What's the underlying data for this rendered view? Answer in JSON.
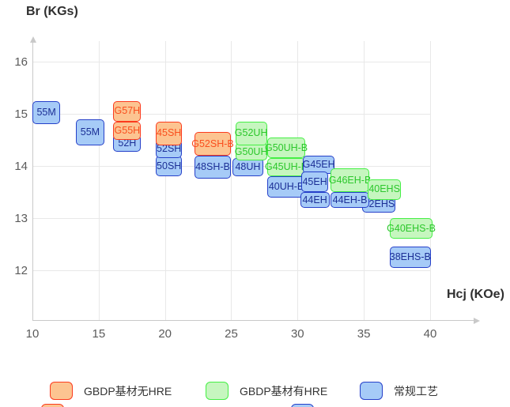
{
  "chart_data": {
    "type": "scatter",
    "title": "",
    "xlabel": "Hcj (KOe)",
    "ylabel": "Br (KGs)",
    "x_ticks": [
      10,
      15,
      20,
      25,
      30,
      35,
      40
    ],
    "y_ticks": [
      16,
      15,
      14,
      13,
      12
    ],
    "xlim": [
      10,
      43.4
    ],
    "ylim": [
      11.1,
      16.4
    ],
    "grid": true,
    "legend_position": "bottom",
    "colors": {
      "gridline": "#e8e8e8",
      "axis": "#c9c9c9",
      "tick_text": "#5b5b5b",
      "title_text": "#2f2f2f",
      "legend_text": "#333333"
    },
    "legend": [
      {
        "key": "gbdp_no_hre",
        "label": "GBDP基材无HRE",
        "fill": "#fcc491",
        "border": "#fb3b1e",
        "text_color": "#fa4f1e"
      },
      {
        "key": "gbdp_with_hre",
        "label": "GBDP基材有HRE",
        "fill": "#c6f6bf",
        "border": "#45ef45",
        "text_color": "#2cc72c"
      },
      {
        "key": "conventional",
        "label": "常规工艺",
        "fill": "#a6cbf7",
        "border": "#2640c9",
        "text_color": "#1c2f96"
      }
    ],
    "legend_overflow_row": [
      {
        "key": "gbdp_no_hre"
      },
      {
        "key": "conventional"
      }
    ],
    "grades": [
      {
        "label": "55M",
        "category": "conventional",
        "hcj": [
          10.0,
          12.1
        ],
        "br": [
          14.8,
          15.25
        ]
      },
      {
        "label": "55M",
        "category": "conventional",
        "hcj": [
          13.3,
          15.4
        ],
        "br": [
          14.4,
          14.9
        ]
      },
      {
        "label": "52H",
        "category": "conventional",
        "hcj": [
          16.1,
          18.2
        ],
        "br": [
          14.27,
          14.6
        ]
      },
      {
        "label": "G55H",
        "category": "gbdp_no_hre",
        "hcj": [
          16.1,
          18.2
        ],
        "br": [
          14.5,
          14.85
        ]
      },
      {
        "label": "G57H",
        "category": "gbdp_no_hre",
        "hcj": [
          16.1,
          18.2
        ],
        "br": [
          14.85,
          15.25
        ]
      },
      {
        "label": "50SH",
        "category": "conventional",
        "hcj": [
          19.3,
          21.3
        ],
        "br": [
          13.8,
          14.2
        ]
      },
      {
        "label": "52SH",
        "category": "conventional",
        "hcj": [
          19.3,
          21.3
        ],
        "br": [
          14.15,
          14.5
        ]
      },
      {
        "label": "45SH",
        "category": "gbdp_no_hre",
        "hcj": [
          19.3,
          21.3
        ],
        "br": [
          14.4,
          14.85
        ]
      },
      {
        "label": "48UH",
        "category": "conventional",
        "hcj": [
          25.1,
          27.4
        ],
        "br": [
          13.8,
          14.15
        ]
      },
      {
        "label": "48SH-B",
        "category": "conventional",
        "hcj": [
          22.2,
          25.0
        ],
        "br": [
          13.75,
          14.2
        ]
      },
      {
        "label": "G52SH-B",
        "category": "gbdp_no_hre",
        "hcj": [
          22.2,
          25.0
        ],
        "br": [
          14.2,
          14.65
        ]
      },
      {
        "label": "G50UH",
        "category": "gbdp_with_hre",
        "hcj": [
          25.3,
          27.7
        ],
        "br": [
          14.1,
          14.45
        ]
      },
      {
        "label": "G52UH",
        "category": "gbdp_with_hre",
        "hcj": [
          25.3,
          27.7
        ],
        "br": [
          14.4,
          14.85
        ]
      },
      {
        "label": "40UH-B",
        "category": "conventional",
        "hcj": [
          27.7,
          30.6
        ],
        "br": [
          13.4,
          13.8
        ]
      },
      {
        "label": "G45UH-B",
        "category": "gbdp_with_hre",
        "hcj": [
          27.7,
          30.6
        ],
        "br": [
          13.8,
          14.15
        ]
      },
      {
        "label": "G50UH-B",
        "category": "gbdp_with_hre",
        "hcj": [
          27.7,
          30.6
        ],
        "br": [
          14.15,
          14.55
        ]
      },
      {
        "label": "G45EH",
        "category": "conventional",
        "hcj": [
          30.4,
          32.8
        ],
        "br": [
          13.85,
          14.2
        ]
      },
      {
        "label": "44EH",
        "category": "conventional",
        "hcj": [
          30.2,
          32.4
        ],
        "br": [
          13.2,
          13.5
        ]
      },
      {
        "label": "45EH",
        "category": "conventional",
        "hcj": [
          30.3,
          32.3
        ],
        "br": [
          13.5,
          13.9
        ]
      },
      {
        "label": "42EHS",
        "category": "conventional",
        "hcj": [
          34.9,
          37.4
        ],
        "br": [
          13.1,
          13.45
        ]
      },
      {
        "label": "44EH-B",
        "category": "conventional",
        "hcj": [
          32.5,
          35.4
        ],
        "br": [
          13.2,
          13.5
        ]
      },
      {
        "label": "G46EH-B",
        "category": "gbdp_with_hre",
        "hcj": [
          32.5,
          35.4
        ],
        "br": [
          13.5,
          13.95
        ]
      },
      {
        "label": "40EHS",
        "category": "gbdp_with_hre",
        "hcj": [
          35.3,
          37.8
        ],
        "br": [
          13.35,
          13.75
        ]
      },
      {
        "label": "G40EHS-B",
        "category": "gbdp_with_hre",
        "hcj": [
          36.95,
          40.2
        ],
        "br": [
          12.6,
          13.0
        ]
      },
      {
        "label": "38EHS-B",
        "category": "conventional",
        "hcj": [
          36.95,
          40.05
        ],
        "br": [
          12.05,
          12.45
        ]
      }
    ]
  }
}
